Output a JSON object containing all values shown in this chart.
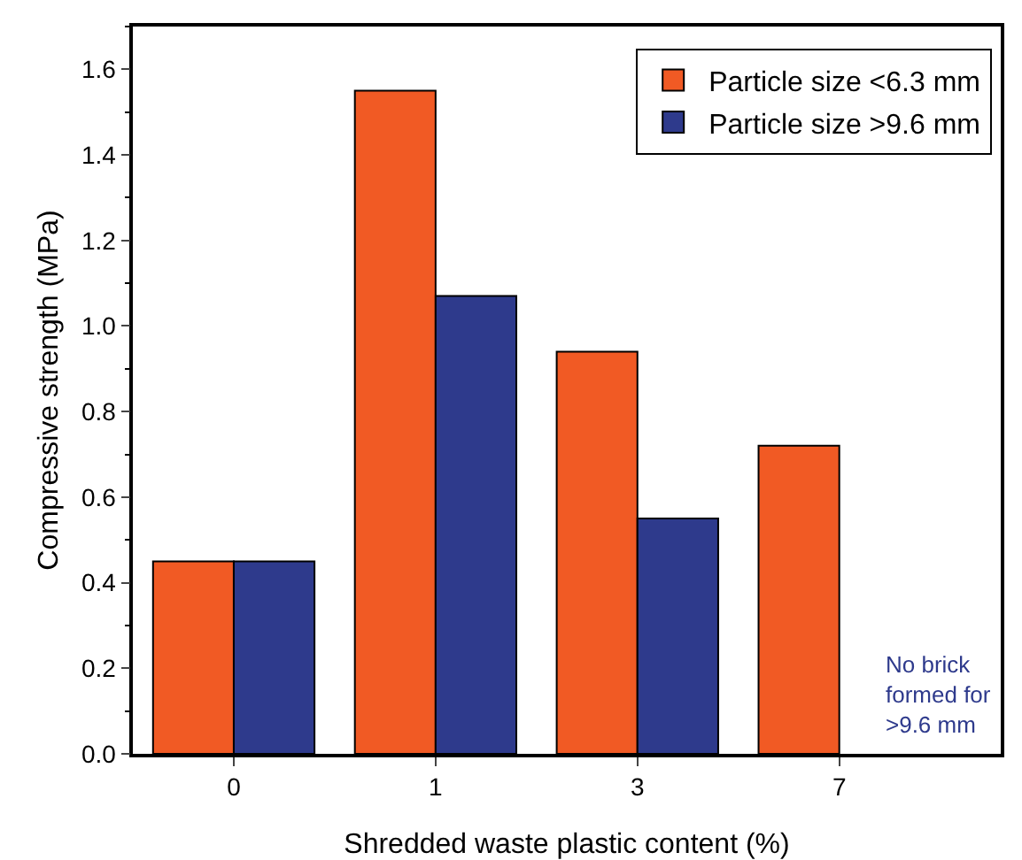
{
  "chart_data": {
    "type": "bar",
    "xlabel": "Shredded waste plastic content (%)",
    "ylabel": "Compressive strength (MPa)",
    "categories": [
      "0",
      "1",
      "3",
      "7"
    ],
    "series": [
      {
        "name": "Particle size <6.3 mm",
        "color": "#f15a24",
        "values": [
          0.45,
          1.55,
          0.94,
          0.72
        ]
      },
      {
        "name": "Particle size >9.6 mm",
        "color": "#2e3a8c",
        "values": [
          0.45,
          1.07,
          0.55,
          null
        ]
      }
    ],
    "ylim": [
      0,
      1.7
    ],
    "yticks": [
      {
        "value": 0,
        "label": "0.0"
      },
      0.2,
      0.4,
      0.6,
      0.8,
      {
        "value": 1,
        "label": "1.0"
      },
      1.2,
      1.4,
      1.6
    ],
    "annotations": [
      {
        "text": "No brick\nformed for\n>9.6 mm",
        "x": "7",
        "y": 0.14
      }
    ],
    "legend": "top right",
    "grid": false
  }
}
